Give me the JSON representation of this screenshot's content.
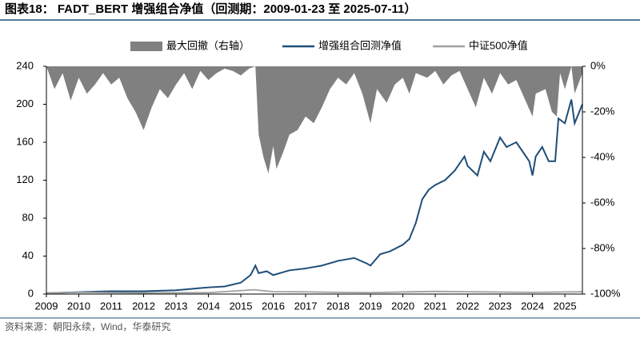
{
  "chart_data": {
    "type": "line",
    "title": "图表18： FADT_BERT 增强组合净值（回测期：2009-01-23 至 2025-07-11）",
    "source": "资料来源：朝阳永续，Wind，华泰研究",
    "xlim": [
      2009,
      2025.54
    ],
    "xticks": [
      2009,
      2010,
      2011,
      2012,
      2013,
      2014,
      2015,
      2016,
      2017,
      2018,
      2019,
      2020,
      2021,
      2022,
      2023,
      2024,
      2025
    ],
    "ylim": [
      0,
      240
    ],
    "yticks": [
      0,
      40,
      80,
      120,
      160,
      200,
      240
    ],
    "y2lim": [
      -100,
      0
    ],
    "y2ticks": [
      {
        "value": 0,
        "label": "0%"
      },
      {
        "value": -20,
        "label": "-20%"
      },
      {
        "value": -40,
        "label": "-40%"
      },
      {
        "value": -60,
        "label": "-60%"
      },
      {
        "value": -80,
        "label": "-80%"
      },
      {
        "value": -100,
        "label": "-100%"
      }
    ],
    "legend": "top",
    "series": [
      {
        "name": "最大回撤（右轴）",
        "kind": "area",
        "axis": "y2",
        "color": "#808080",
        "x": [
          2009,
          2009.25,
          2009.5,
          2009.75,
          2010,
          2010.25,
          2010.5,
          2010.75,
          2011,
          2011.25,
          2011.5,
          2011.75,
          2012,
          2012.25,
          2012.5,
          2012.75,
          2013,
          2013.25,
          2013.5,
          2013.75,
          2014,
          2014.25,
          2014.5,
          2014.75,
          2015,
          2015.25,
          2015.45,
          2015.55,
          2015.7,
          2015.85,
          2016,
          2016.1,
          2016.3,
          2016.5,
          2016.75,
          2017,
          2017.25,
          2017.5,
          2017.75,
          2018,
          2018.25,
          2018.5,
          2018.75,
          2019,
          2019.2,
          2019.5,
          2019.75,
          2020,
          2020.2,
          2020.4,
          2020.75,
          2021,
          2021.25,
          2021.5,
          2021.75,
          2022,
          2022.25,
          2022.5,
          2022.75,
          2023,
          2023.25,
          2023.5,
          2023.75,
          2024,
          2024.1,
          2024.4,
          2024.6,
          2024.75,
          2024.85,
          2025,
          2025.2,
          2025.3,
          2025.54
        ],
        "values": [
          0,
          -10,
          -3,
          -15,
          -5,
          -12,
          -8,
          -3,
          -8,
          -5,
          -14,
          -20,
          -28,
          -18,
          -10,
          -14,
          -8,
          -3,
          -10,
          -2,
          -6,
          -3,
          -1,
          -2,
          -4,
          -1,
          0,
          -30,
          -40,
          -47,
          -35,
          -45,
          -38,
          -30,
          -28,
          -22,
          -25,
          -18,
          -10,
          -5,
          -8,
          -3,
          -12,
          -25,
          -10,
          -16,
          -8,
          -5,
          -12,
          -3,
          -5,
          -2,
          -8,
          -4,
          -2,
          -10,
          -18,
          -5,
          -12,
          -3,
          -8,
          -6,
          -14,
          -22,
          -12,
          -10,
          -20,
          -22,
          -3,
          -10,
          0,
          -12,
          -3
        ]
      },
      {
        "name": "增强组合回测净值",
        "kind": "line",
        "color": "#1f4e79",
        "x": [
          2009,
          2010,
          2011,
          2012,
          2013,
          2014,
          2014.5,
          2015,
          2015.3,
          2015.45,
          2015.55,
          2015.8,
          2016,
          2016.5,
          2017,
          2017.5,
          2018,
          2018.5,
          2018.9,
          2019,
          2019.3,
          2019.6,
          2020,
          2020.2,
          2020.4,
          2020.6,
          2020.8,
          2021,
          2021.3,
          2021.6,
          2021.9,
          2022,
          2022.3,
          2022.5,
          2022.7,
          2023,
          2023.2,
          2023.5,
          2023.7,
          2023.9,
          2024,
          2024.1,
          2024.3,
          2024.5,
          2024.7,
          2024.8,
          2025,
          2025.2,
          2025.3,
          2025.54
        ],
        "values": [
          1,
          2,
          3,
          3,
          4,
          7,
          8,
          12,
          20,
          30,
          22,
          24,
          20,
          25,
          27,
          30,
          35,
          38,
          32,
          30,
          42,
          45,
          52,
          58,
          75,
          100,
          110,
          115,
          120,
          130,
          145,
          135,
          125,
          150,
          140,
          165,
          155,
          160,
          150,
          140,
          125,
          145,
          155,
          140,
          140,
          185,
          180,
          205,
          180,
          200
        ]
      },
      {
        "name": "中证500净值",
        "kind": "line",
        "color": "#a0a0a0",
        "x": [
          2009,
          2010,
          2011,
          2012,
          2013,
          2014,
          2015.4,
          2016,
          2017,
          2018,
          2019,
          2020,
          2021,
          2022,
          2023,
          2024,
          2025,
          2025.54
        ],
        "values": [
          1,
          1.8,
          1.5,
          1.2,
          1.4,
          1.5,
          4.5,
          2.5,
          2.3,
          1.8,
          1.5,
          2.2,
          2.8,
          2.4,
          2.1,
          1.8,
          2.2,
          2.4
        ]
      }
    ]
  }
}
